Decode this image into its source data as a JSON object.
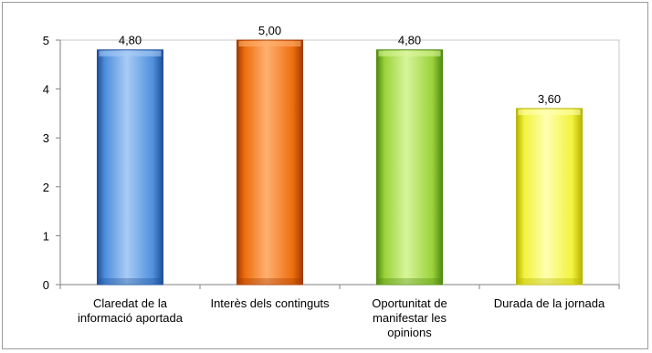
{
  "chart_data": {
    "type": "bar",
    "categories": [
      [
        "Claredat de la",
        "informació aportada"
      ],
      [
        "Interès dels continguts"
      ],
      [
        "Oportunitat de",
        "manifestar les",
        "opinions"
      ],
      [
        "Durada de la jornada"
      ]
    ],
    "values": [
      4.8,
      5.0,
      4.8,
      3.6
    ],
    "value_labels": [
      "4,80",
      "5,00",
      "4,80",
      "3,60"
    ],
    "ylim": [
      0,
      5
    ],
    "yticks": [
      0,
      1,
      2,
      3,
      4,
      5
    ],
    "grid": false,
    "legend": "none",
    "title": "",
    "xlabel": "",
    "ylabel": "",
    "colors": {
      "bars": [
        "#4f8fdc",
        "#ee6e0e",
        "#9bd23a",
        "#f2f23e"
      ],
      "bar_dark": [
        "#1f4f9a",
        "#a23a00",
        "#4f8a12",
        "#b5b500"
      ],
      "bar_light": [
        "#a8ccf5",
        "#ffb070",
        "#d8f59a",
        "#ffffb0"
      ],
      "axis": "#808080"
    }
  }
}
